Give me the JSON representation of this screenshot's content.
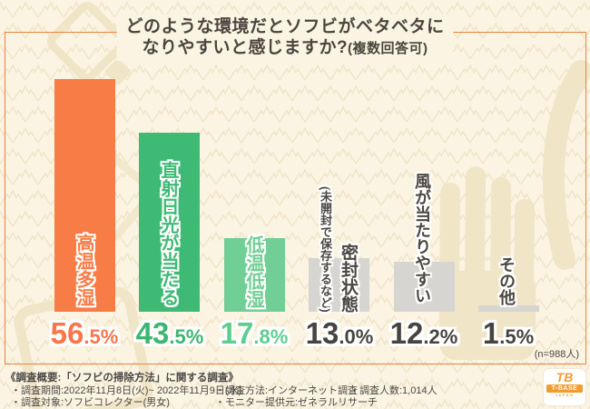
{
  "title": {
    "line1": "どのような環境だとソフビがベタベタに",
    "line2_main": "なりやすいと感じますか?",
    "line2_sub": "(複数回答可)"
  },
  "sample_note": "(n=988人)",
  "chart_data": {
    "type": "bar",
    "title": "どのような環境だとソフビがベタベタになりやすいと感じますか?(複数回答可)",
    "unit": "%",
    "ylim": [
      0,
      60
    ],
    "grid": false,
    "legend": "none",
    "sample_size": "n=988人",
    "categories": [
      "高温多湿",
      "直射日光が当たる",
      "低温低湿",
      "密封状態(未開封で保存するなど)",
      "風が当たりやすい",
      "その他"
    ],
    "values": [
      56.5,
      43.5,
      17.8,
      13.0,
      12.2,
      1.5
    ],
    "bars": [
      {
        "label": "高温多湿",
        "label_sub": "",
        "value": 56.5,
        "pct_main": "56",
        "pct_frac": ".5%",
        "bar_color": "#F87C46",
        "label_color": "#F87C46",
        "pct_color": "#F8764A"
      },
      {
        "label": "直射日光が当たる",
        "label_sub": "",
        "value": 43.5,
        "pct_main": "43",
        "pct_frac": ".5%",
        "bar_color": "#3FBA75",
        "label_color": "#3FBA75",
        "pct_color": "#3CB671"
      },
      {
        "label": "低温低湿",
        "label_sub": "",
        "value": 17.8,
        "pct_main": "17",
        "pct_frac": ".8%",
        "bar_color": "#71CE94",
        "label_color": "#71CE94",
        "pct_color": "#5ECE8F"
      },
      {
        "label": "密封状態",
        "label_sub": "(未開封で保存するなど)",
        "value": 13.0,
        "pct_main": "13",
        "pct_frac": ".0%",
        "bar_color": "#D6D5D2",
        "label_color": "#4B4742",
        "pct_color": "#474440"
      },
      {
        "label": "風が当たりやすい",
        "label_sub": "",
        "value": 12.2,
        "pct_main": "12",
        "pct_frac": ".2%",
        "bar_color": "#D6D5D2",
        "label_color": "#4B4742",
        "pct_color": "#474440"
      },
      {
        "label": "その他",
        "label_sub": "",
        "value": 1.5,
        "pct_main": "1",
        "pct_frac": ".5%",
        "bar_color": "#D6D5D2",
        "label_color": "#4B4742",
        "pct_color": "#474440"
      }
    ]
  },
  "footer": {
    "survey_overview": "《調査概要:「ソフビの掃除方法」に関する調査》",
    "period": "・調査期間:2022年11月8日(火)~ 2022年11月9日(水)",
    "subjects": "・調査対象:ソフビコレクター(男女)",
    "method": "・調査方法:インターネット調査",
    "respondents": "・調査人数:1,014人",
    "monitor": "・モニター提供元:ゼネラルリサーチ"
  },
  "logo": {
    "monogram": "TB",
    "name": "T-BASE",
    "country": "JAPAN"
  },
  "colors": {
    "background": "#FBF4E2",
    "frame": "#E8823F",
    "pattern": "#F0E4C8",
    "watermark": "#F1E5C8",
    "text": "#4A463F"
  }
}
